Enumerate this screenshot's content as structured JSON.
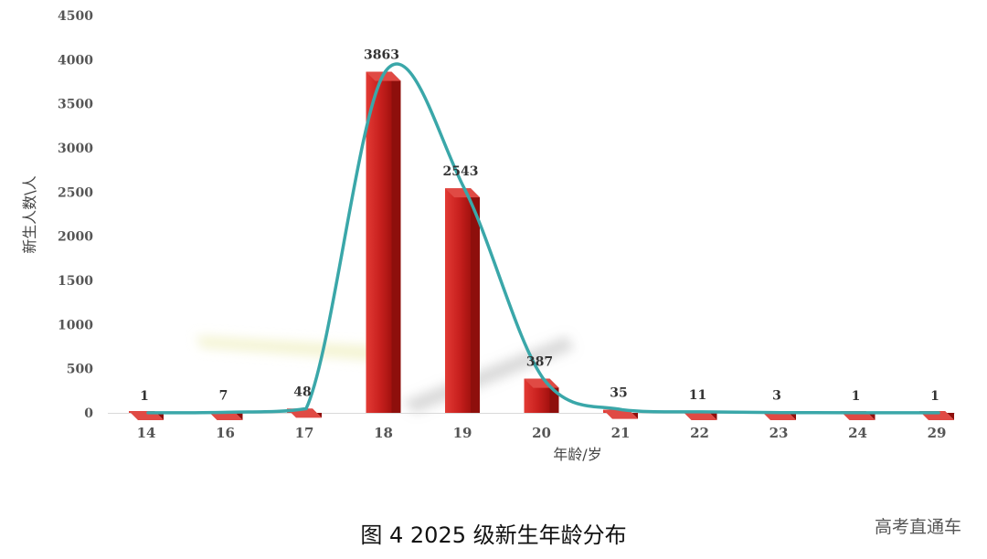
{
  "chart_data": {
    "type": "bar",
    "categories": [
      "14",
      "16",
      "17",
      "18",
      "19",
      "20",
      "21",
      "22",
      "23",
      "24",
      "29"
    ],
    "values": [
      1,
      7,
      48,
      3863,
      2543,
      387,
      35,
      11,
      3,
      1,
      1
    ],
    "data_labels": [
      "1",
      "7",
      "48",
      "3863",
      "2543",
      "387",
      "35",
      "11",
      "3",
      "1",
      "1"
    ],
    "xlabel": "年龄/岁",
    "ylabel": "新生人数\\人",
    "ylim": [
      0,
      4500
    ],
    "yticks": [
      "0",
      "500",
      "1000",
      "1500",
      "2000",
      "2500",
      "3000",
      "3500",
      "4000",
      "4500"
    ],
    "bar_color": "#c8201e",
    "curve_color": "#3aa7a9",
    "grid": false,
    "legend": "none",
    "trend_curve": true
  },
  "caption": "图  4 2025 级新生年龄分布",
  "watermark": "高考直通车"
}
